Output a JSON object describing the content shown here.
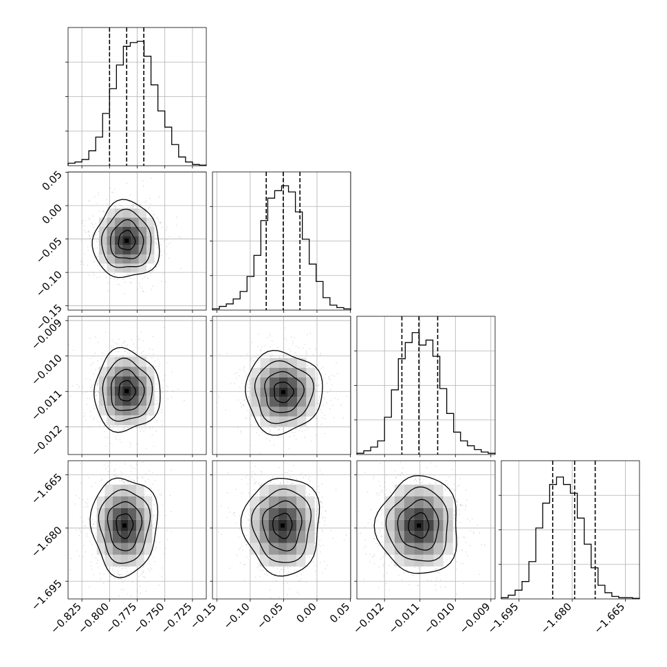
{
  "chart_data": {
    "type": "corner",
    "params": [
      {
        "range": [
          -0.8375,
          -0.7125
        ],
        "ticks": [
          -0.825,
          -0.8,
          -0.775,
          -0.75,
          -0.725
        ],
        "tick_labels": [
          "−0.825",
          "−0.800",
          "−0.775",
          "−0.750",
          "−0.725"
        ],
        "quantiles": [
          -0.8,
          -0.7845,
          -0.769
        ],
        "median": -0.7845,
        "sigma": 0.013
      },
      {
        "range": [
          -0.1565,
          0.0505
        ],
        "ticks": [
          -0.15,
          -0.1,
          -0.05,
          0.0,
          0.05
        ],
        "tick_labels": [
          "−0.15",
          "−0.10",
          "−0.05",
          "0.00",
          "0.05"
        ],
        "quantiles": [
          -0.076,
          -0.0505,
          -0.0255
        ],
        "median": -0.0505,
        "sigma": 0.025
      },
      {
        "range": [
          -0.01278,
          -0.00888
        ],
        "ticks": [
          -0.012,
          -0.011,
          -0.01,
          -0.009
        ],
        "tick_labels": [
          "−0.012",
          "−0.011",
          "−0.010",
          "−0.009"
        ],
        "quantiles": [
          -0.01151,
          -0.01103,
          -0.0105
        ],
        "median": -0.01103,
        "sigma": 0.0005
      },
      {
        "range": [
          -1.7,
          -1.661
        ],
        "ticks": [
          -1.695,
          -1.68,
          -1.665
        ],
        "tick_labels": [
          "−1.695",
          "−1.680",
          "−1.665"
        ],
        "quantiles": [
          -1.6855,
          -1.6793,
          -1.6735
        ],
        "median": -1.6793,
        "sigma": 0.006
      }
    ],
    "histograms": [
      {
        "bins": 20,
        "counts": [
          0.02,
          0.03,
          0.05,
          0.12,
          0.23,
          0.42,
          0.62,
          0.81,
          0.96,
          0.99,
          1.0,
          0.88,
          0.65,
          0.44,
          0.31,
          0.17,
          0.07,
          0.03,
          0.01,
          0.005
        ]
      },
      {
        "bins": 20,
        "counts": [
          0.01,
          0.03,
          0.05,
          0.09,
          0.15,
          0.27,
          0.44,
          0.72,
          0.9,
          0.96,
          1.0,
          0.95,
          0.79,
          0.57,
          0.37,
          0.23,
          0.1,
          0.04,
          0.02,
          0.01
        ]
      },
      {
        "bins": 20,
        "counts": [
          0.01,
          0.03,
          0.06,
          0.11,
          0.3,
          0.52,
          0.77,
          0.9,
          0.98,
          0.88,
          0.92,
          0.79,
          0.53,
          0.33,
          0.18,
          0.11,
          0.07,
          0.04,
          0.02,
          0.01
        ]
      },
      {
        "bins": 20,
        "counts": [
          0.01,
          0.03,
          0.07,
          0.14,
          0.3,
          0.57,
          0.77,
          0.92,
          0.98,
          0.92,
          0.85,
          0.65,
          0.44,
          0.25,
          0.11,
          0.05,
          0.02,
          0.01,
          0.01,
          0.005
        ]
      }
    ],
    "pairs": [
      {
        "row": 1,
        "col": 0,
        "shift": [
          0.0,
          -0.002
        ],
        "rho": 0.0
      },
      {
        "row": 2,
        "col": 0,
        "shift": [
          0.0,
          4e-05
        ],
        "rho": 0.0
      },
      {
        "row": 2,
        "col": 1,
        "shift": [
          0.0,
          1e-05
        ],
        "rho": 0.0
      },
      {
        "row": 3,
        "col": 0,
        "shift": [
          -0.002,
          0.0
        ],
        "rho": 0.0
      },
      {
        "row": 3,
        "col": 1,
        "shift": [
          -0.001,
          0.0
        ],
        "rho": 0.0
      },
      {
        "row": 3,
        "col": 2,
        "shift": [
          0.0,
          0.0
        ],
        "rho": 0.0
      }
    ],
    "contour_levels_sigma": [
      0.5,
      1.0,
      1.5,
      2.0
    ],
    "grid": true,
    "scatter_points": true,
    "hist2d_shading": true,
    "quantile_lines": "dashed"
  }
}
